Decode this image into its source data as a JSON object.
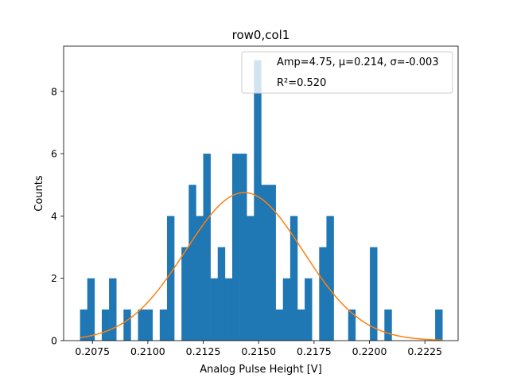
{
  "chart_data": {
    "type": "bar",
    "title": "row0,col1",
    "xlabel": "Analog Pulse Height [V]",
    "ylabel": "Counts",
    "xlim": [
      0.2062,
      0.224
    ],
    "ylim": [
      0,
      9.45
    ],
    "xticks": [
      0.2075,
      0.21,
      0.2125,
      0.215,
      0.2175,
      0.22,
      0.2225
    ],
    "xtick_labels": [
      "0.2075",
      "0.2100",
      "0.2125",
      "0.2150",
      "0.2175",
      "0.2200",
      "0.2225"
    ],
    "yticks": [
      0,
      2,
      4,
      6,
      8
    ],
    "ytick_labels": [
      "0",
      "2",
      "4",
      "6",
      "8"
    ],
    "grid": false,
    "legend_position": "top-right",
    "legend": {
      "amp_text": "Amp=4.75, μ=0.214, σ=-0.003",
      "r2_text": "R²=0.520"
    },
    "histogram": {
      "bin_start": 0.20694,
      "bin_width": 0.000327,
      "counts": [
        1,
        2,
        0,
        1,
        2,
        0,
        1,
        0,
        1,
        1,
        0,
        1,
        4,
        0,
        3,
        5,
        4,
        6,
        2,
        3,
        2,
        6,
        6,
        4,
        9,
        5,
        5,
        1,
        2,
        4,
        1,
        2,
        0,
        3,
        4,
        0,
        0,
        1,
        0,
        0,
        3,
        0,
        1,
        0,
        0,
        0,
        0,
        0,
        0,
        1
      ],
      "color": "#1f77b4"
    },
    "fit": {
      "name": "Gaussian fit",
      "amplitude": 4.75,
      "mu": 0.21435,
      "sigma": 0.00265,
      "x_range": [
        0.20694,
        0.22329
      ],
      "color": "#ff7f0e"
    }
  }
}
